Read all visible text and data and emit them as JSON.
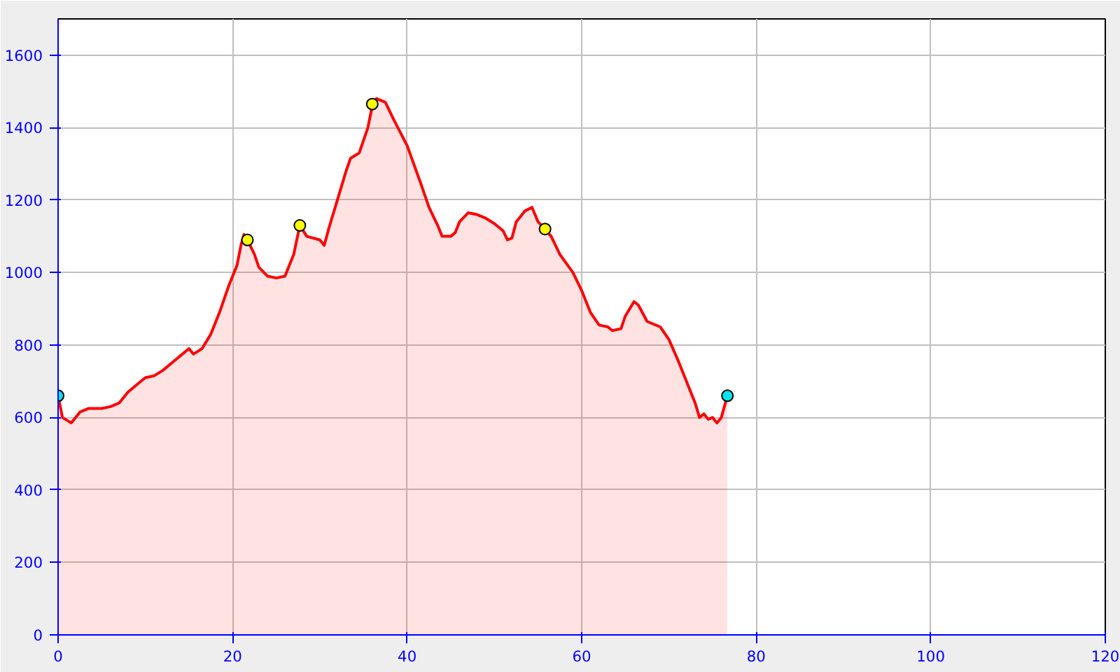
{
  "chart_data": {
    "type": "area",
    "xlim": [
      0,
      120
    ],
    "ylim": [
      0,
      1700
    ],
    "xticks": [
      0,
      20,
      40,
      60,
      80,
      100,
      120
    ],
    "yticks": [
      0,
      200,
      400,
      600,
      800,
      1000,
      1200,
      1400,
      1600
    ],
    "grid": true,
    "series": [
      {
        "color": "#ff0000",
        "marker": "none",
        "x": [
          0,
          0.5,
          1.5,
          2.5,
          3.5,
          5,
          6,
          7,
          8,
          9,
          10,
          11,
          12,
          13,
          14,
          15,
          15.5,
          16.5,
          17.5,
          18.5,
          19.5,
          20.5,
          21,
          21.3,
          21.7,
          22.5,
          23,
          24,
          25,
          26,
          27,
          27.7,
          28.5,
          30,
          30.5,
          31,
          32,
          33,
          33.5,
          34.5,
          35.5,
          36,
          36.5,
          37.5,
          38.5,
          40,
          41.5,
          42.5,
          43.5,
          44,
          45,
          45.5,
          46,
          47,
          48,
          49,
          50,
          51,
          51.5,
          52,
          52.5,
          53.5,
          54.3,
          55,
          55.8,
          56.5,
          57.5,
          59,
          60,
          61,
          62,
          63,
          63.5,
          64.5,
          65,
          66,
          66.5,
          67.5,
          69,
          70,
          71,
          72,
          73,
          73.5,
          74,
          74.5,
          75,
          75.5,
          76,
          76.7
        ],
        "values": [
          660,
          600,
          585,
          615,
          625,
          625,
          630,
          640,
          670,
          690,
          710,
          715,
          730,
          750,
          770,
          790,
          775,
          790,
          830,
          890,
          960,
          1020,
          1080,
          1105,
          1090,
          1050,
          1015,
          990,
          985,
          990,
          1050,
          1130,
          1100,
          1090,
          1075,
          1120,
          1200,
          1280,
          1315,
          1330,
          1400,
          1460,
          1480,
          1470,
          1420,
          1350,
          1250,
          1180,
          1130,
          1100,
          1100,
          1110,
          1140,
          1165,
          1160,
          1150,
          1135,
          1115,
          1090,
          1095,
          1140,
          1170,
          1180,
          1140,
          1120,
          1100,
          1050,
          1000,
          950,
          890,
          855,
          850,
          840,
          845,
          880,
          920,
          910,
          865,
          850,
          815,
          760,
          700,
          640,
          600,
          610,
          595,
          600,
          585,
          600,
          660
        ]
      },
      {
        "type": "scatter",
        "marker": "circle",
        "color": "#ffff00",
        "x": [
          21.7,
          27.7,
          36,
          55.8
        ],
        "values": [
          1090,
          1130,
          1465,
          1120
        ]
      },
      {
        "type": "scatter",
        "marker": "circle",
        "color": "#00e5ee",
        "x": [
          0,
          76.7
        ],
        "values": [
          660,
          660
        ]
      }
    ]
  }
}
